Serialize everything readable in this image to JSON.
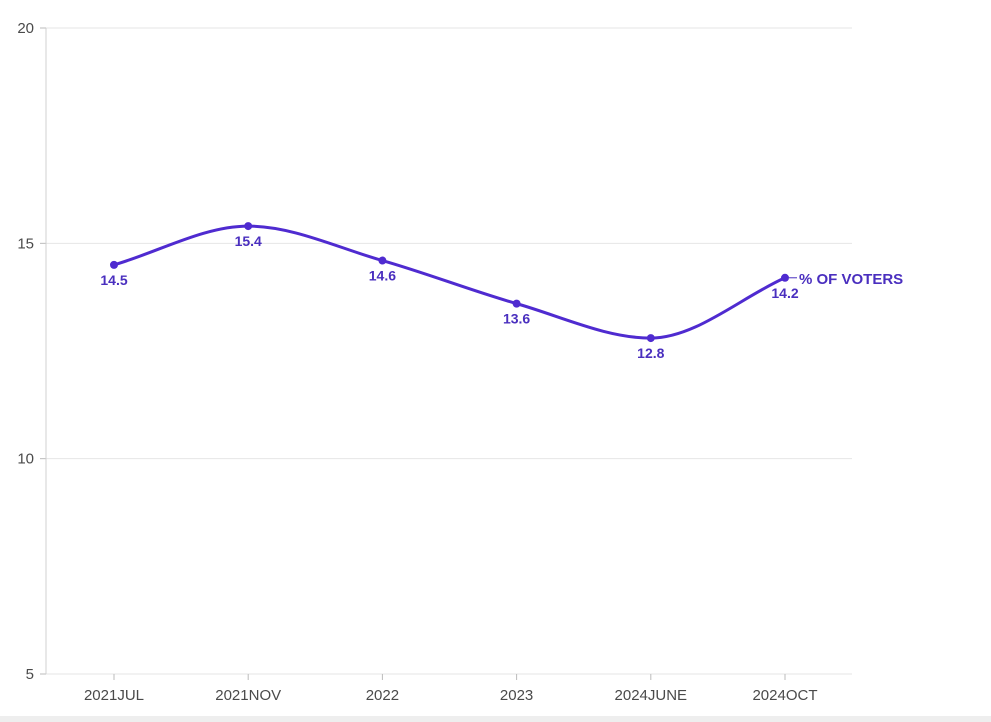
{
  "chart_data": {
    "type": "line",
    "categories": [
      "2021JUL",
      "2021NOV",
      "2022",
      "2023",
      "2024JUNE",
      "2024OCT"
    ],
    "series": [
      {
        "name": "% OF VOTERS",
        "values": [
          14.5,
          15.4,
          14.6,
          13.6,
          12.8,
          14.2
        ],
        "data_labels": [
          "14.5",
          "15.4",
          "14.6",
          "13.6",
          "12.8",
          "14.2"
        ]
      }
    ],
    "ylim": [
      5,
      20
    ],
    "yticks": [
      "5",
      "10",
      "15",
      "20"
    ],
    "grid": true,
    "smooth": true,
    "line_color": "#4f2bd0",
    "label_color": "#4a2fbf"
  }
}
